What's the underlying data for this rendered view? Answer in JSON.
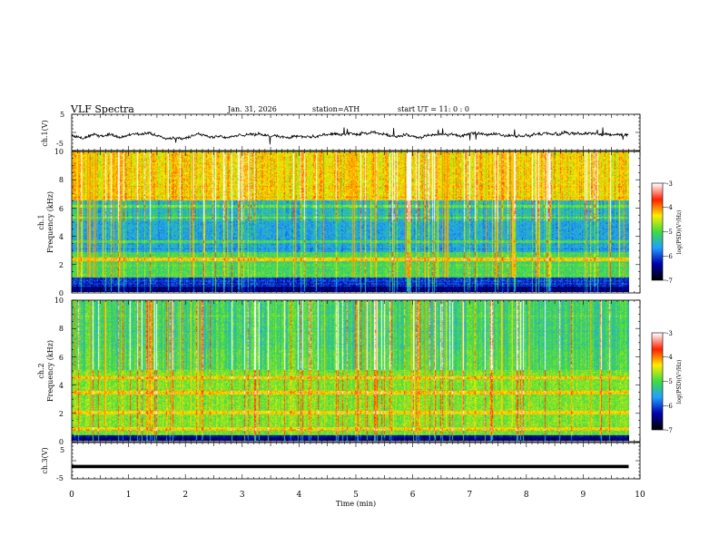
{
  "header": {
    "title": "VLF Spectra",
    "date": "Jan. 31, 2026",
    "station": "station=ATH",
    "start": "start UT =  11: 0  : 0"
  },
  "chart_data": [
    {
      "type": "line",
      "name": "ch1-waveform",
      "ylabel": "ch.1(V)",
      "ylim": [
        -5,
        5
      ],
      "ytick_labels": [
        "5",
        "-5"
      ],
      "xlim": [
        0,
        10
      ],
      "series_extent_min": [
        0,
        9.8
      ]
    },
    {
      "type": "heatmap",
      "name": "ch1-spectrogram",
      "ylabel_channel": "ch.1",
      "ylabel": "Frequency (kHz)",
      "ylim": [
        0,
        10
      ],
      "ytick_labels": [
        "0",
        "2",
        "4",
        "6",
        "8",
        "10"
      ],
      "colorbar": {
        "label": "log(PSD)(V²/Hz)",
        "range": [
          -7,
          -3
        ],
        "tick_labels": [
          "-3",
          "-4",
          "-5",
          "-6",
          "-7"
        ],
        "stops": [
          "#ffffff",
          "#ff2000",
          "#ffee00",
          "#40dd40",
          "#20a0ff",
          "#0000b0",
          "#000000"
        ]
      }
    },
    {
      "type": "heatmap",
      "name": "ch2-spectrogram",
      "ylabel_channel": "ch.2",
      "ylabel": "Frequency (kHz)",
      "ylim": [
        0,
        10
      ],
      "ytick_labels": [
        "0",
        "2",
        "4",
        "6",
        "8",
        "10"
      ],
      "colorbar": {
        "label": "log(PSD)(V²/Hz)",
        "range": [
          -7,
          -3
        ],
        "tick_labels": [
          "-3",
          "-4",
          "-5",
          "-6",
          "-7"
        ],
        "stops": [
          "#ffffff",
          "#ff2000",
          "#ffee00",
          "#40dd40",
          "#20a0ff",
          "#0000b0",
          "#000000"
        ]
      }
    },
    {
      "type": "line",
      "name": "ch3-waveform",
      "ylabel": "ch.3(V)",
      "ylim": [
        -5,
        5
      ],
      "ytick_labels": [
        "5",
        "-5"
      ],
      "value_level_V": -1.6,
      "xlim": [
        0,
        10
      ],
      "xlabel": "Time (min)",
      "xtick_labels": [
        "0",
        "1",
        "2",
        "3",
        "4",
        "5",
        "6",
        "7",
        "8",
        "9",
        "10"
      ]
    }
  ]
}
